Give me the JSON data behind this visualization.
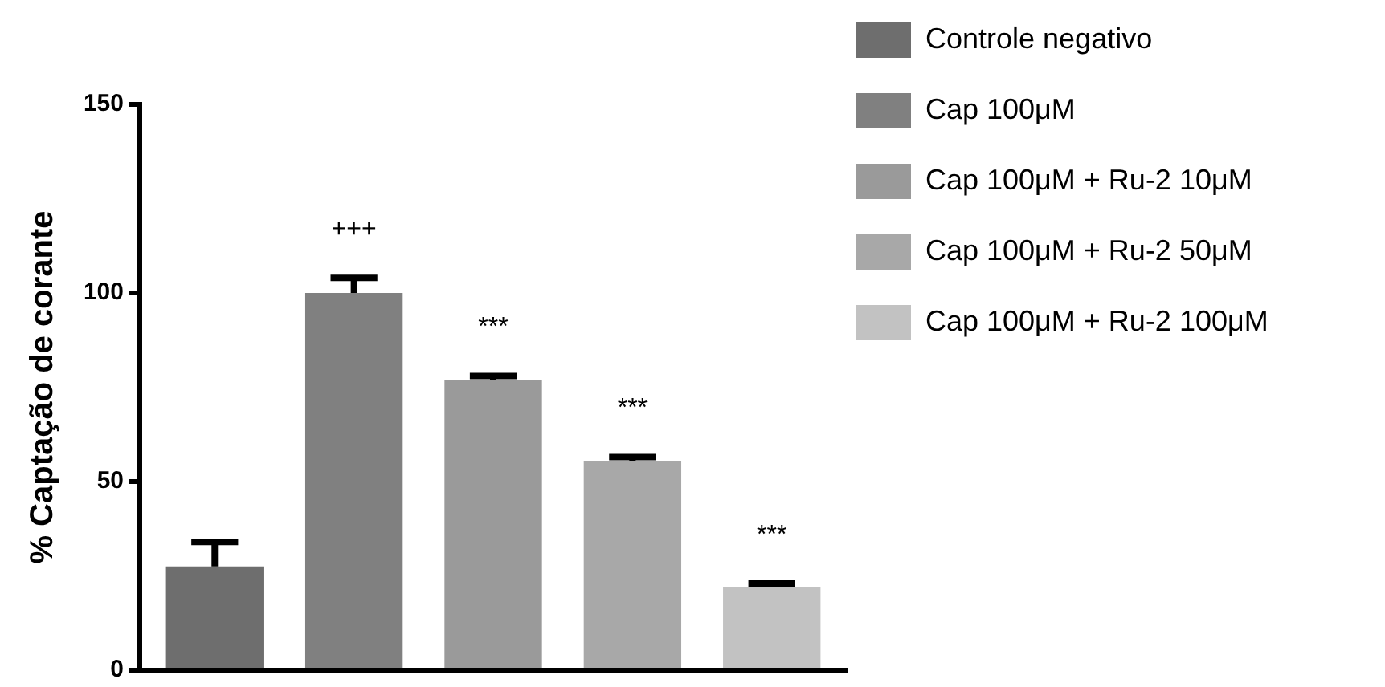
{
  "chart_data": {
    "type": "bar",
    "ylabel": "% Captação de corante",
    "categories": [
      null
    ],
    "series": [
      {
        "name": "Controle negativo",
        "color": "#6e6e6e",
        "values": [
          27.5
        ],
        "errors": [
          [
            27.5,
            34
          ]
        ]
      },
      {
        "name": "Cap 100μM",
        "color": "#808080",
        "values": [
          100
        ],
        "errors": [
          [
            100,
            104
          ]
        ],
        "value_labels": [
          "+++"
        ]
      },
      {
        "name": "Cap 100μM + Ru-2 10μM",
        "color": "#9a9a9a",
        "values": [
          77
        ],
        "errors": [
          [
            77,
            78
          ]
        ],
        "value_labels": [
          "***"
        ]
      },
      {
        "name": "Cap 100μM + Ru-2 50μM",
        "color": "#a8a8a8",
        "values": [
          55.5
        ],
        "errors": [
          [
            55.5,
            56.5
          ]
        ],
        "value_labels": [
          "***"
        ]
      },
      {
        "name": "Cap 100μM + Ru-2 100μM",
        "color": "#c2c2c2",
        "values": [
          22
        ],
        "errors": [
          [
            22,
            23
          ]
        ],
        "value_labels": [
          "***"
        ]
      }
    ],
    "ylim": [
      0,
      150
    ],
    "yticks": [
      0,
      50,
      100,
      150
    ],
    "legend": "top right",
    "tick_labels": "y"
  }
}
